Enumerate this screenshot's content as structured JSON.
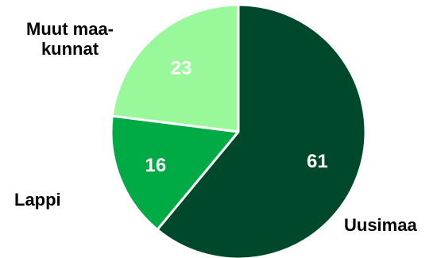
{
  "chart_data": {
    "type": "pie",
    "title": "",
    "start_angle_deg": 0,
    "direction": "clockwise",
    "slices": [
      {
        "label": "Uusimaa",
        "label_lines": [
          "Uusimaa"
        ],
        "value": 61,
        "value_label": "61",
        "color": "#00482b"
      },
      {
        "label": "Lappi",
        "label_lines": [
          "Lappi"
        ],
        "value": 16,
        "value_label": "16",
        "color": "#00aa44"
      },
      {
        "label": "Muut maakunnat",
        "label_lines": [
          "Muut maa-",
          "kunnat"
        ],
        "value": 23,
        "value_label": "23",
        "color": "#99f99a"
      }
    ],
    "legend": "none",
    "slice_border_color": "#ffffff"
  }
}
